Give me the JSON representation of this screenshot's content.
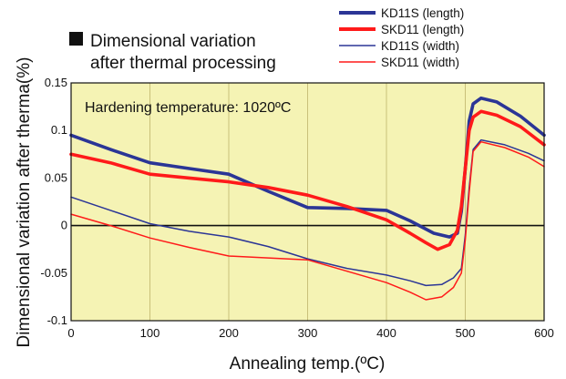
{
  "chart_data": {
    "type": "line",
    "title_lines": [
      "Dimensional variation",
      "after thermal processing"
    ],
    "annotation": "Hardening temperature: 1020ºC",
    "xlabel": "Annealing temp.(ºC)",
    "ylabel": "Dimensional variation after therma(%)",
    "xlim": [
      0,
      600
    ],
    "ylim": [
      -0.1,
      0.15
    ],
    "x_ticks": [
      0,
      100,
      200,
      300,
      400,
      500,
      600
    ],
    "y_ticks": [
      -0.1,
      -0.05,
      0,
      0.05,
      0.1,
      0.15
    ],
    "x_tick_labels": [
      "0",
      "100",
      "200",
      "300",
      "400",
      "500",
      "600"
    ],
    "y_tick_labels": [
      "-0.1",
      "-0.05",
      "0",
      "0.05",
      "0.1",
      "0.15"
    ],
    "grid": "vertical",
    "legend_position": "top-right",
    "series": [
      {
        "name": "KD11S (length)",
        "color": "#2b3596",
        "weight": "thick",
        "points": [
          [
            0,
            0.095
          ],
          [
            50,
            0.08
          ],
          [
            100,
            0.066
          ],
          [
            150,
            0.06
          ],
          [
            200,
            0.054
          ],
          [
            250,
            0.036
          ],
          [
            300,
            0.019
          ],
          [
            350,
            0.018
          ],
          [
            400,
            0.016
          ],
          [
            430,
            0.005
          ],
          [
            460,
            -0.008
          ],
          [
            480,
            -0.012
          ],
          [
            490,
            -0.008
          ],
          [
            495,
            0.015
          ],
          [
            500,
            0.06
          ],
          [
            505,
            0.11
          ],
          [
            510,
            0.128
          ],
          [
            520,
            0.134
          ],
          [
            540,
            0.13
          ],
          [
            570,
            0.115
          ],
          [
            600,
            0.095
          ]
        ]
      },
      {
        "name": "SKD11 (length)",
        "color": "#ff1a1a",
        "weight": "thick",
        "points": [
          [
            0,
            0.075
          ],
          [
            50,
            0.066
          ],
          [
            100,
            0.054
          ],
          [
            150,
            0.05
          ],
          [
            200,
            0.046
          ],
          [
            250,
            0.04
          ],
          [
            300,
            0.032
          ],
          [
            350,
            0.02
          ],
          [
            400,
            0.006
          ],
          [
            430,
            -0.008
          ],
          [
            450,
            -0.018
          ],
          [
            465,
            -0.025
          ],
          [
            480,
            -0.02
          ],
          [
            490,
            -0.005
          ],
          [
            495,
            0.02
          ],
          [
            500,
            0.06
          ],
          [
            505,
            0.1
          ],
          [
            510,
            0.114
          ],
          [
            520,
            0.12
          ],
          [
            540,
            0.116
          ],
          [
            570,
            0.104
          ],
          [
            600,
            0.085
          ]
        ]
      },
      {
        "name": "KD11S (width)",
        "color": "#2b3596",
        "weight": "thin",
        "points": [
          [
            0,
            0.03
          ],
          [
            50,
            0.016
          ],
          [
            100,
            0.002
          ],
          [
            150,
            -0.006
          ],
          [
            200,
            -0.012
          ],
          [
            250,
            -0.022
          ],
          [
            300,
            -0.035
          ],
          [
            350,
            -0.045
          ],
          [
            400,
            -0.052
          ],
          [
            430,
            -0.058
          ],
          [
            450,
            -0.063
          ],
          [
            470,
            -0.062
          ],
          [
            485,
            -0.055
          ],
          [
            495,
            -0.045
          ],
          [
            500,
            -0.01
          ],
          [
            505,
            0.04
          ],
          [
            510,
            0.08
          ],
          [
            520,
            0.09
          ],
          [
            550,
            0.085
          ],
          [
            580,
            0.076
          ],
          [
            600,
            0.068
          ]
        ]
      },
      {
        "name": "SKD11 (width)",
        "color": "#ff1a1a",
        "weight": "thin",
        "points": [
          [
            0,
            0.012
          ],
          [
            50,
            0.0
          ],
          [
            100,
            -0.013
          ],
          [
            150,
            -0.023
          ],
          [
            200,
            -0.032
          ],
          [
            250,
            -0.034
          ],
          [
            300,
            -0.036
          ],
          [
            350,
            -0.048
          ],
          [
            400,
            -0.06
          ],
          [
            430,
            -0.07
          ],
          [
            450,
            -0.078
          ],
          [
            470,
            -0.075
          ],
          [
            485,
            -0.065
          ],
          [
            495,
            -0.05
          ],
          [
            500,
            -0.015
          ],
          [
            505,
            0.035
          ],
          [
            510,
            0.078
          ],
          [
            520,
            0.088
          ],
          [
            550,
            0.082
          ],
          [
            580,
            0.072
          ],
          [
            600,
            0.062
          ]
        ]
      }
    ]
  }
}
